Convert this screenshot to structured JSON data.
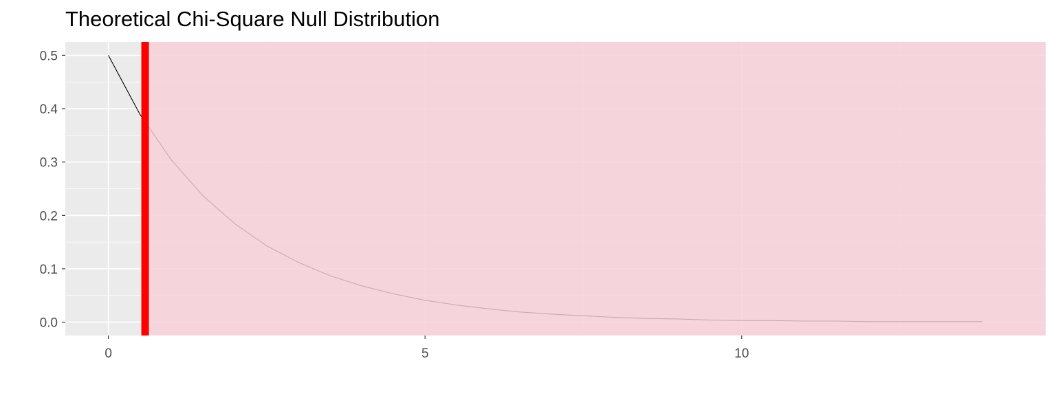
{
  "chart_data": {
    "type": "area",
    "title": "Theoretical Chi-Square Null Distribution",
    "xlabel": "",
    "ylabel": "",
    "distribution": "chi-square",
    "degrees_of_freedom": 2,
    "xlim": [
      -0.68,
      14.8
    ],
    "ylim": [
      -0.025,
      0.525
    ],
    "x_ticks": [
      0,
      5,
      10
    ],
    "y_ticks": [
      0.0,
      0.1,
      0.2,
      0.3,
      0.4,
      0.5
    ],
    "x_tick_labels": [
      "0",
      "5",
      "10"
    ],
    "y_tick_labels": [
      "0.0",
      "0.1",
      "0.2",
      "0.3",
      "0.4",
      "0.5"
    ],
    "curve": {
      "x": [
        0,
        0.5,
        1,
        1.5,
        2,
        2.5,
        3,
        3.5,
        4,
        4.5,
        5,
        5.5,
        6,
        6.5,
        7,
        7.5,
        8,
        8.5,
        9,
        9.5,
        10,
        10.5,
        11,
        11.5,
        12,
        12.5,
        13,
        13.5,
        13.8
      ],
      "y": [
        0.5,
        0.389,
        0.303,
        0.236,
        0.184,
        0.143,
        0.112,
        0.087,
        0.068,
        0.053,
        0.041,
        0.032,
        0.025,
        0.019,
        0.015,
        0.012,
        0.009,
        0.007,
        0.006,
        0.004,
        0.003,
        0.003,
        0.002,
        0.002,
        0.001,
        0.001,
        0.001,
        0.001,
        0.001
      ],
      "color": "#000000"
    },
    "observed_statistic": {
      "x": 0.58,
      "color": "#ff0000"
    },
    "shaded_region": {
      "x_from": 0.58,
      "x_to": "right-edge",
      "color": "#f6cfd7"
    },
    "grid": true,
    "panel_background": "#ebebeb",
    "grid_color": "#ffffff"
  }
}
